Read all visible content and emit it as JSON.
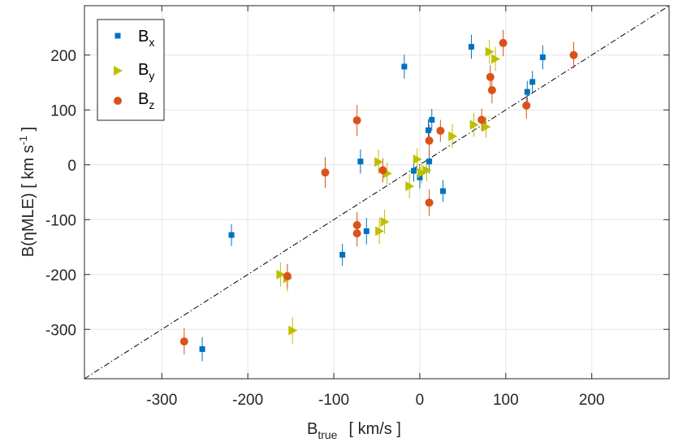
{
  "chart_data": {
    "type": "scatter",
    "xlabel": {
      "main": "B",
      "sub": "true",
      "units": "[ km/s ]"
    },
    "ylabel": {
      "pre": "B(",
      "greek": "η",
      "post": "MLE)  [ km s",
      "sup": "-1",
      "end": " ]"
    },
    "xlim": [
      -390,
      290
    ],
    "ylim": [
      -390,
      290
    ],
    "xticks": [
      -300,
      -200,
      -100,
      0,
      100,
      200
    ],
    "yticks": [
      -300,
      -200,
      -100,
      0,
      100,
      200
    ],
    "xtick_labels": [
      "-300",
      "-200",
      "-100",
      "0",
      "100",
      "200"
    ],
    "ytick_labels": [
      "-300",
      "-200",
      "-100",
      "0",
      "100",
      "200"
    ],
    "grid": true,
    "legend_position": "top-left",
    "reference_line": {
      "style": "dash-dot",
      "color": "#000000",
      "slope": 1,
      "intercept": 0
    },
    "series": [
      {
        "name": "B",
        "subscript": "x",
        "marker": "square",
        "color": "#0072BD",
        "points": [
          {
            "x": -253,
            "y": -336,
            "err": 22
          },
          {
            "x": -219,
            "y": -128,
            "err": 20
          },
          {
            "x": -90,
            "y": -164,
            "err": 20
          },
          {
            "x": -69,
            "y": 6,
            "err": 22
          },
          {
            "x": -62,
            "y": -121,
            "err": 24
          },
          {
            "x": -18,
            "y": 179,
            "err": 22
          },
          {
            "x": -7,
            "y": -11,
            "err": 20
          },
          {
            "x": 0,
            "y": -23,
            "err": 20
          },
          {
            "x": 10,
            "y": 63,
            "err": 20
          },
          {
            "x": 11,
            "y": 6,
            "err": 22
          },
          {
            "x": 14,
            "y": 82,
            "err": 20
          },
          {
            "x": 27,
            "y": -48,
            "err": 20
          },
          {
            "x": 60,
            "y": 215,
            "err": 22
          },
          {
            "x": 125,
            "y": 133,
            "err": 20
          },
          {
            "x": 131,
            "y": 151,
            "err": 20
          },
          {
            "x": 143,
            "y": 196,
            "err": 22
          }
        ]
      },
      {
        "name": "B",
        "subscript": "y",
        "marker": "triangle-right",
        "color": "#BFBF00",
        "points": [
          {
            "x": -162,
            "y": -200,
            "err": 22
          },
          {
            "x": -154,
            "y": -207,
            "err": 24
          },
          {
            "x": -148,
            "y": -302,
            "err": 24
          },
          {
            "x": -48,
            "y": 5,
            "err": 22
          },
          {
            "x": -47,
            "y": -121,
            "err": 24
          },
          {
            "x": -41,
            "y": -104,
            "err": 22
          },
          {
            "x": -38,
            "y": -16,
            "err": 20
          },
          {
            "x": -12,
            "y": -39,
            "err": 22
          },
          {
            "x": -3,
            "y": 10,
            "err": 20
          },
          {
            "x": 2,
            "y": -15,
            "err": 20
          },
          {
            "x": 8,
            "y": -10,
            "err": 20
          },
          {
            "x": 38,
            "y": 52,
            "err": 22
          },
          {
            "x": 63,
            "y": 73,
            "err": 22
          },
          {
            "x": 77,
            "y": 69,
            "err": 20
          },
          {
            "x": 81,
            "y": 206,
            "err": 22
          },
          {
            "x": 88,
            "y": 193,
            "err": 22
          }
        ]
      },
      {
        "name": "B",
        "subscript": "z",
        "marker": "circle",
        "color": "#D95319",
        "points": [
          {
            "x": -274,
            "y": -322,
            "err": 24
          },
          {
            "x": -154,
            "y": -203,
            "err": 22
          },
          {
            "x": -110,
            "y": -14,
            "err": 28
          },
          {
            "x": -73,
            "y": 81,
            "err": 28
          },
          {
            "x": -73,
            "y": -110,
            "err": 24
          },
          {
            "x": -73,
            "y": -125,
            "err": 24
          },
          {
            "x": -43,
            "y": -10,
            "err": 22
          },
          {
            "x": 11,
            "y": 44,
            "err": 30
          },
          {
            "x": 11,
            "y": -69,
            "err": 24
          },
          {
            "x": 24,
            "y": 62,
            "err": 20
          },
          {
            "x": 72,
            "y": 82,
            "err": 20
          },
          {
            "x": 82,
            "y": 160,
            "err": 22
          },
          {
            "x": 84,
            "y": 136,
            "err": 24
          },
          {
            "x": 97,
            "y": 222,
            "err": 24
          },
          {
            "x": 124,
            "y": 108,
            "err": 24
          },
          {
            "x": 179,
            "y": 200,
            "err": 24
          }
        ]
      }
    ]
  }
}
